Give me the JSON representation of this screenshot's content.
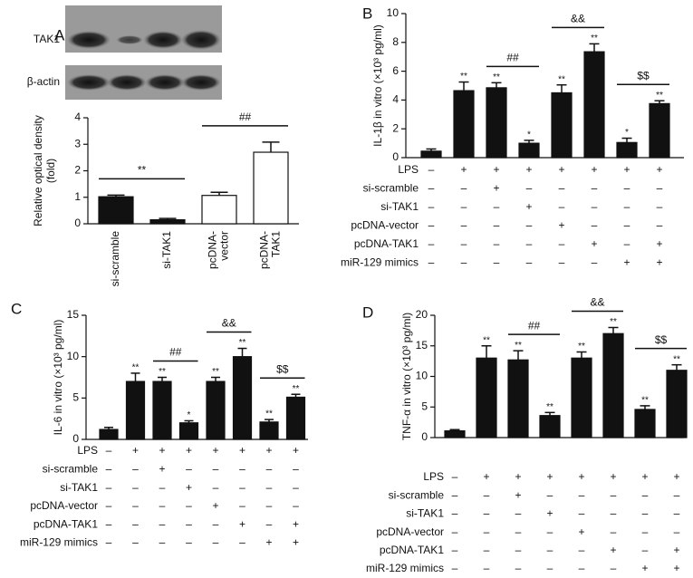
{
  "chart_data": [
    {
      "type": "bar",
      "panel": "A",
      "blot_labels": [
        "TAK1",
        "β-actin"
      ],
      "ylabel": [
        "Relative optical density",
        "(fold)"
      ],
      "categories": [
        [
          "si-scramble"
        ],
        [
          "si-TAK1"
        ],
        [
          "pcDNA-",
          "vector"
        ],
        [
          "pcDNA-",
          "TAK1"
        ]
      ],
      "values": [
        1.02,
        0.15,
        1.07,
        2.7
      ],
      "errors": [
        0.06,
        0.05,
        0.12,
        0.38
      ],
      "colors": [
        "#111111",
        "#111111",
        "#ffffff",
        "#ffffff"
      ],
      "ylim": [
        0,
        4
      ],
      "yticks": [
        0,
        1,
        2,
        3,
        4
      ],
      "brackets": [
        {
          "between": [
            0,
            1
          ],
          "label": "**"
        },
        {
          "between": [
            2,
            3
          ],
          "label": "##"
        }
      ]
    },
    {
      "type": "bar",
      "panel": "B",
      "ylabel": [
        "IL-1β in vitro (×10³ pg/ml)"
      ],
      "color": "#111111",
      "values": [
        0.45,
        4.65,
        4.85,
        1.0,
        4.5,
        7.35,
        1.05,
        3.75
      ],
      "errors": [
        0.15,
        0.6,
        0.35,
        0.2,
        0.55,
        0.55,
        0.3,
        0.2
      ],
      "significance": [
        null,
        "**",
        "**",
        "*",
        "**",
        "**",
        "*",
        "**"
      ],
      "ylim": [
        0,
        10
      ],
      "yticks": [
        0,
        2,
        4,
        6,
        8,
        10
      ],
      "brackets": [
        {
          "between": [
            2,
            3
          ],
          "label": "##"
        },
        {
          "between": [
            4,
            5
          ],
          "label": "&&"
        },
        {
          "between": [
            6,
            7
          ],
          "label": "$$"
        }
      ],
      "table": [
        {
          "label": "LPS",
          "signs": [
            "–",
            "+",
            "+",
            "+",
            "+",
            "+",
            "+",
            "+"
          ]
        },
        {
          "label": "si-scramble",
          "signs": [
            "–",
            "–",
            "+",
            "–",
            "–",
            "–",
            "–",
            "–"
          ]
        },
        {
          "label": "si-TAK1",
          "signs": [
            "–",
            "–",
            "–",
            "+",
            "–",
            "–",
            "–",
            "–"
          ]
        },
        {
          "label": "pcDNA-vector",
          "signs": [
            "–",
            "–",
            "–",
            "–",
            "+",
            "–",
            "–",
            "–"
          ]
        },
        {
          "label": "pcDNA-TAK1",
          "signs": [
            "–",
            "–",
            "–",
            "–",
            "–",
            "+",
            "–",
            "+"
          ]
        },
        {
          "label": "miR-129 mimics",
          "signs": [
            "–",
            "–",
            "–",
            "–",
            "–",
            "–",
            "+",
            "+"
          ]
        }
      ]
    },
    {
      "type": "bar",
      "panel": "C",
      "ylabel": [
        "IL-6 in vitro (×10³ pg/ml)"
      ],
      "color": "#111111",
      "values": [
        1.2,
        7.0,
        7.0,
        2.0,
        7.0,
        10.0,
        2.1,
        5.1
      ],
      "errors": [
        0.25,
        1.0,
        0.5,
        0.25,
        0.5,
        1.0,
        0.3,
        0.35
      ],
      "significance": [
        null,
        "**",
        "**",
        "*",
        "**",
        "**",
        "**",
        "**"
      ],
      "ylim": [
        0,
        15
      ],
      "yticks": [
        0,
        5,
        10,
        15
      ],
      "brackets": [
        {
          "between": [
            2,
            3
          ],
          "label": "##"
        },
        {
          "between": [
            4,
            5
          ],
          "label": "&&"
        },
        {
          "between": [
            6,
            7
          ],
          "label": "$$"
        }
      ],
      "table": [
        {
          "label": "LPS",
          "signs": [
            "–",
            "+",
            "+",
            "+",
            "+",
            "+",
            "+",
            "+"
          ]
        },
        {
          "label": "si-scramble",
          "signs": [
            "–",
            "–",
            "+",
            "–",
            "–",
            "–",
            "–",
            "–"
          ]
        },
        {
          "label": "si-TAK1",
          "signs": [
            "–",
            "–",
            "–",
            "+",
            "–",
            "–",
            "–",
            "–"
          ]
        },
        {
          "label": "pcDNA-vector",
          "signs": [
            "–",
            "–",
            "–",
            "–",
            "+",
            "–",
            "–",
            "–"
          ]
        },
        {
          "label": "pcDNA-TAK1",
          "signs": [
            "–",
            "–",
            "–",
            "–",
            "–",
            "+",
            "–",
            "+"
          ]
        },
        {
          "label": "miR-129 mimics",
          "signs": [
            "–",
            "–",
            "–",
            "–",
            "–",
            "–",
            "+",
            "+"
          ]
        }
      ]
    },
    {
      "type": "bar",
      "panel": "D",
      "ylabel": [
        "TNF-α in vitro (×10³ pg/ml)"
      ],
      "color": "#111111",
      "values": [
        1.1,
        13.0,
        12.7,
        3.6,
        13.0,
        17.0,
        4.6,
        11.0
      ],
      "errors": [
        0.2,
        2.0,
        1.5,
        0.5,
        1.0,
        1.0,
        0.6,
        0.9
      ],
      "significance": [
        null,
        "**",
        "**",
        "**",
        "**",
        "**",
        "**",
        "**"
      ],
      "ylim": [
        0,
        20
      ],
      "yticks": [
        0,
        5,
        10,
        15,
        20
      ],
      "brackets": [
        {
          "between": [
            2,
            3
          ],
          "label": "##"
        },
        {
          "between": [
            4,
            5
          ],
          "label": "&&"
        },
        {
          "between": [
            6,
            7
          ],
          "label": "$$"
        }
      ],
      "table": [
        {
          "label": "LPS",
          "signs": [
            "–",
            "+",
            "+",
            "+",
            "+",
            "+",
            "+",
            "+"
          ]
        },
        {
          "label": "si-scramble",
          "signs": [
            "–",
            "–",
            "+",
            "–",
            "–",
            "–",
            "–",
            "–"
          ]
        },
        {
          "label": "si-TAK1",
          "signs": [
            "–",
            "–",
            "–",
            "+",
            "–",
            "–",
            "–",
            "–"
          ]
        },
        {
          "label": "pcDNA-vector",
          "signs": [
            "–",
            "–",
            "–",
            "–",
            "+",
            "–",
            "–",
            "–"
          ]
        },
        {
          "label": "pcDNA-TAK1",
          "signs": [
            "–",
            "–",
            "–",
            "–",
            "–",
            "+",
            "–",
            "+"
          ]
        },
        {
          "label": "miR-129 mimics",
          "signs": [
            "–",
            "–",
            "–",
            "–",
            "–",
            "–",
            "+",
            "+"
          ]
        }
      ]
    }
  ]
}
